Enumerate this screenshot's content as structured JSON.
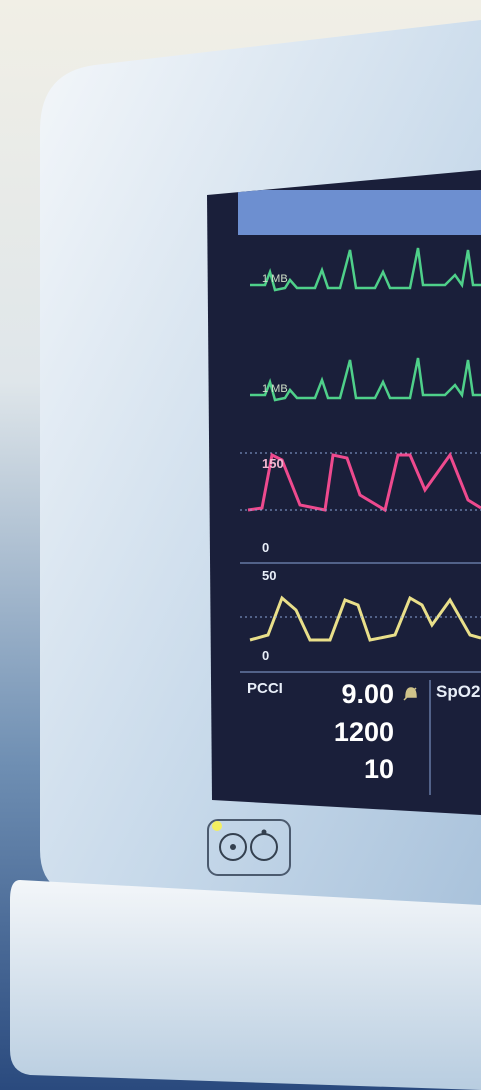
{
  "ecg_traces": [
    "1 MB",
    "1 MB"
  ],
  "pressure_scale": {
    "top": "150",
    "bottom": "0"
  },
  "pleth_scale": {
    "top": "50",
    "bottom": "0"
  },
  "pcci": {
    "label": "PCCI",
    "values": [
      "9.00",
      "1200",
      "10"
    ]
  },
  "spo2": {
    "label": "SpO2"
  }
}
